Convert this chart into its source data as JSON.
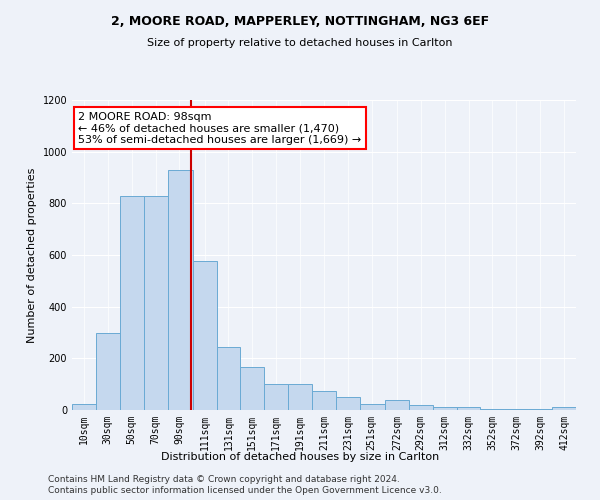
{
  "title1": "2, MOORE ROAD, MAPPERLEY, NOTTINGHAM, NG3 6EF",
  "title2": "Size of property relative to detached houses in Carlton",
  "xlabel": "Distribution of detached houses by size in Carlton",
  "ylabel": "Number of detached properties",
  "bar_color": "#c5d8ee",
  "bar_edge_color": "#6aaad4",
  "annotation_text": "2 MOORE ROAD: 98sqm\n← 46% of detached houses are smaller (1,470)\n53% of semi-detached houses are larger (1,669) →",
  "vline_color": "#cc0000",
  "vline_x": 100,
  "categories": [
    "10sqm",
    "30sqm",
    "50sqm",
    "70sqm",
    "90sqm",
    "111sqm",
    "131sqm",
    "151sqm",
    "171sqm",
    "191sqm",
    "211sqm",
    "231sqm",
    "251sqm",
    "272sqm",
    "292sqm",
    "312sqm",
    "332sqm",
    "352sqm",
    "372sqm",
    "392sqm",
    "412sqm"
  ],
  "bin_left": [
    0,
    20,
    40,
    60,
    80,
    101,
    121,
    141,
    161,
    181,
    201,
    221,
    241,
    262,
    282,
    302,
    322,
    342,
    362,
    382,
    402
  ],
  "bin_right": [
    20,
    40,
    60,
    80,
    101,
    121,
    141,
    161,
    181,
    201,
    221,
    241,
    262,
    282,
    302,
    322,
    342,
    362,
    382,
    402,
    422
  ],
  "bin_centers": [
    10,
    30,
    50,
    70,
    90,
    111,
    131,
    151,
    171,
    191,
    211,
    231,
    251,
    272,
    292,
    312,
    332,
    352,
    372,
    392,
    412
  ],
  "heights": [
    25,
    300,
    830,
    830,
    930,
    575,
    245,
    165,
    100,
    100,
    75,
    50,
    25,
    40,
    20,
    10,
    10,
    5,
    5,
    3,
    10
  ],
  "ylim": [
    0,
    1200
  ],
  "yticks": [
    0,
    200,
    400,
    600,
    800,
    1000,
    1200
  ],
  "footer1": "Contains HM Land Registry data © Crown copyright and database right 2024.",
  "footer2": "Contains public sector information licensed under the Open Government Licence v3.0.",
  "background_color": "#eef2f9",
  "plot_bg_color": "#eef2f9",
  "grid_color": "#ffffff",
  "title_fontsize": 9,
  "subtitle_fontsize": 8,
  "ylabel_fontsize": 8,
  "xlabel_fontsize": 8,
  "tick_fontsize": 7,
  "footer_fontsize": 6.5,
  "annot_fontsize": 8
}
